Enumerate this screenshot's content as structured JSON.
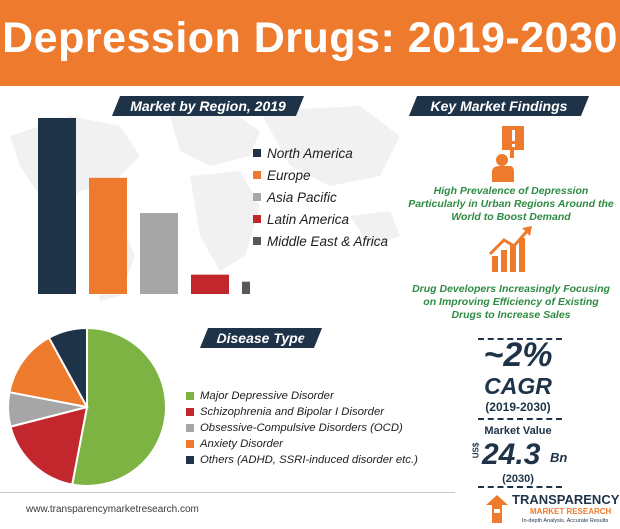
{
  "header": {
    "title": "Depression Drugs: 2019-2030"
  },
  "region": {
    "heading": "Market by Region, 2019",
    "chart_data": {
      "type": "bar",
      "categories": [
        "North America",
        "Europe",
        "Asia Pacific",
        "Latin America",
        "Middle East & Africa"
      ],
      "values": [
        100,
        66,
        46,
        11,
        7
      ],
      "colors": [
        "#1e3347",
        "#ee7b2d",
        "#a6a6a6",
        "#c1272d",
        "#595959"
      ]
    }
  },
  "findings": {
    "heading": "Key Market Findings",
    "finding1": "High Prevalence of Depression Particularly in Urban Regions Around the World to Boost Demand",
    "finding2": "Drug Developers Increasingly Focusing on Improving Efficiency of Existing Drugs to Increase Sales",
    "icon1": "person-alert-icon",
    "icon2": "growth-chart-icon",
    "accent": "#2e8b43"
  },
  "disease": {
    "heading": "Disease Type",
    "chart_data": {
      "type": "pie",
      "categories": [
        "Major Depressive Disorder",
        "Schizophrenia and Bipolar I Disorder",
        "Obsessive-Compulsive Disorders (OCD)",
        "Anxiety Disorder",
        "Others (ADHD, SSRI-induced disorder etc.)"
      ],
      "values": [
        53,
        18,
        7,
        14,
        8
      ],
      "colors": [
        "#7cb342",
        "#c1272d",
        "#a6a6a6",
        "#ee7b2d",
        "#1e3347"
      ]
    }
  },
  "stats": {
    "cagr_value": "~2%",
    "cagr_label": "CAGR",
    "cagr_period": "(2019-2030)",
    "mv_label": "Market Value",
    "currency": "US$",
    "mv_value": "24.3",
    "mv_unit": "Bn",
    "mv_year": "(2030)"
  },
  "footer": {
    "url": "www.transparencymarketresearch.com",
    "brand_line1": "TRANSPARENCY",
    "brand_line2": "MARKET RESEARCH",
    "brand_tagline": "In-depth Analysis. Accurate Results"
  }
}
